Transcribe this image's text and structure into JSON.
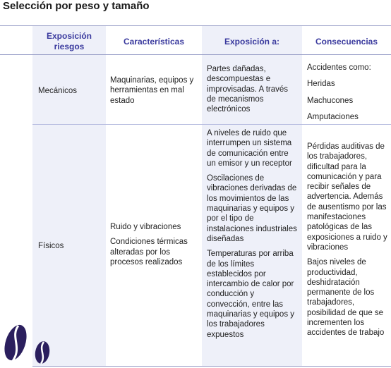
{
  "title": "Selección por peso y tamaño",
  "headers": {
    "col1": "Exposición riesgos",
    "col2": "Características",
    "col3": "Exposición a:",
    "col4": "Consecuencias"
  },
  "rows": [
    {
      "risk": "Mecánicos",
      "characteristics": [
        "Maquinarias, equipos y herramientas en mal estado"
      ],
      "exposure": [
        "Partes dañadas, descompuestas e improvisadas. A través de mecanismos electrónicos"
      ],
      "consequences": [
        "Accidentes como:",
        "Heridas",
        "Machucones",
        "Amputaciones"
      ]
    },
    {
      "risk": "Físicos",
      "characteristics": [
        "Ruido y vibraciones",
        "Condiciones térmicas alteradas por los procesos realizados"
      ],
      "exposure": [
        "A niveles de ruido que interrumpen un sistema de comunicación entre un emisor y un receptor",
        "Oscilaciones de vibraciones derivadas de los movimientos de las maquinarias y equipos y por el tipo de instalaciones industriales diseñadas",
        "Temperaturas por arriba de los límites establecidos por intercambio de calor por conducción y convección, entre las maquinarias y equipos y los trabajadores expuestos"
      ],
      "consequences": [
        "Pérdidas auditivas de los trabajadores, dificultad para la comunicación y para recibir señales de advertencia. Además de ausentismo por las manifestaciones patológicas de las exposiciones a ruido y vibraciones",
        "Bajos niveles de productividad, deshidratación permanente de los trabajadores, posibilidad de que se incrementen los accidentes de trabajo"
      ]
    }
  ],
  "colors": {
    "accent": "#3a3a9e",
    "shade": "#eef0f9",
    "beans": "#2b1f5e"
  }
}
